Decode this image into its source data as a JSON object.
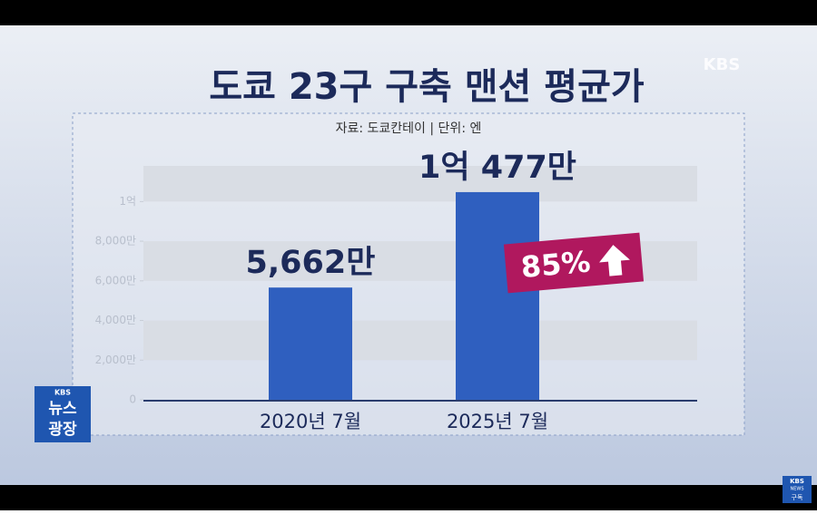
{
  "chart_data": {
    "type": "bar",
    "title": "도쿄 23구 구축 맨션 평균가",
    "subtitle": "자료: 도쿄칸테이 | 단위: 엔",
    "categories": [
      "2020년 7월",
      "2025년 7월"
    ],
    "values": [
      5662,
      10477
    ],
    "value_labels": [
      "5,662만",
      "1억 477만"
    ],
    "color": "#2f5fbf",
    "ylim": [
      0,
      11800
    ],
    "yticks": [
      0,
      {
        "value": 2000,
        "label": "2,000만"
      },
      {
        "value": 4000,
        "label": "4,000만"
      },
      {
        "value": 6000,
        "label": "6,000만"
      },
      {
        "value": 8000,
        "label": "8,000만"
      },
      {
        "value": 10000,
        "label": "1억"
      }
    ],
    "grid": "bands",
    "annotation": "85%"
  },
  "overlay": {
    "channel_logo": "KBS",
    "program_brand": "KBS",
    "program_name_1": "뉴스",
    "program_name_2": "광장",
    "subscribe_brand": "KBS",
    "subscribe_sub": "NEWS",
    "subscribe_label": "구독"
  }
}
